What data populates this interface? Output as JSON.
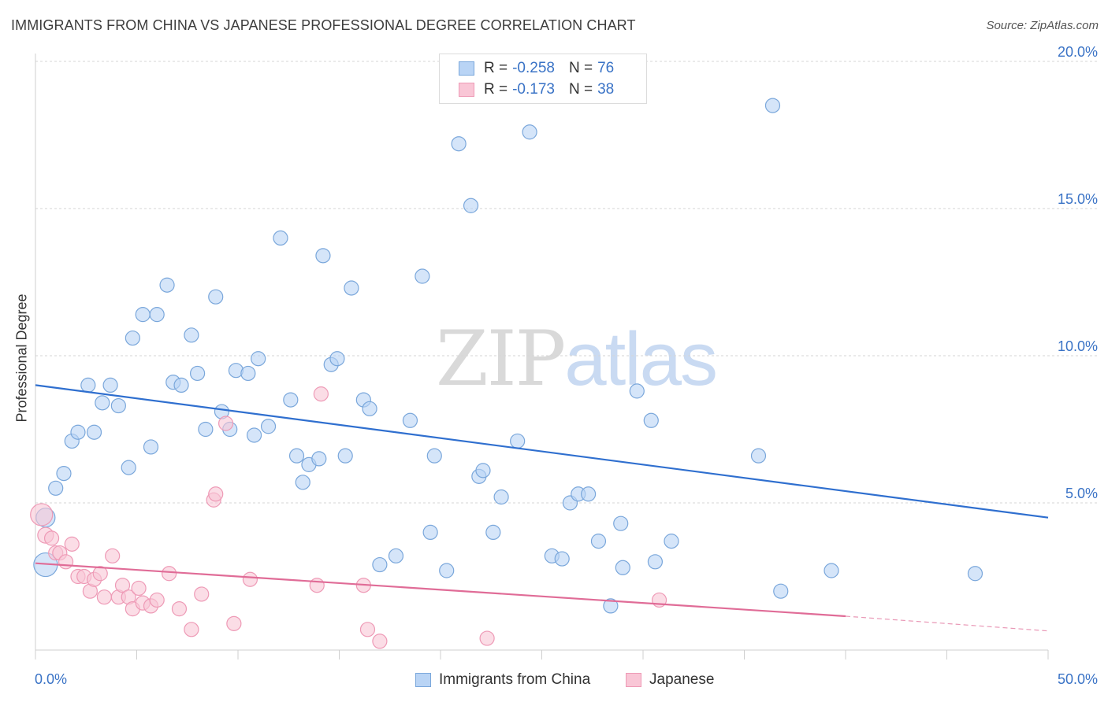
{
  "title": "IMMIGRANTS FROM CHINA VS JAPANESE PROFESSIONAL DEGREE CORRELATION CHART",
  "source": "Source: ZipAtlas.com",
  "watermark": {
    "zip": "ZIP",
    "atlas": "atlas"
  },
  "colors": {
    "china_fill": "#b9d4f5",
    "china_stroke": "#7aa7db",
    "china_line": "#2f6fcf",
    "japanese_fill": "#f9c6d6",
    "japanese_stroke": "#ee9ab6",
    "japanese_line": "#e06c97",
    "grid": "#d5d5d5",
    "axis_label": "#3a73c6"
  },
  "legend": {
    "china": {
      "r_label": "R = ",
      "r_value": "-0.258",
      "n_label": "N = ",
      "n_value": "76"
    },
    "japanese": {
      "r_label": "R = ",
      "r_value": "-0.173",
      "n_label": "N = ",
      "n_value": "38"
    }
  },
  "chart_data": {
    "type": "scatter",
    "title": "IMMIGRANTS FROM CHINA VS JAPANESE PROFESSIONAL DEGREE CORRELATION CHART",
    "xlabel": "",
    "ylabel": "Professional Degree",
    "xlim": [
      0,
      50
    ],
    "ylim": [
      0,
      20
    ],
    "x_tick_labels": [
      "0.0%",
      "50.0%"
    ],
    "y_ticks": [
      5,
      10,
      15,
      20
    ],
    "y_tick_labels": [
      "5.0%",
      "10.0%",
      "15.0%",
      "20.0%"
    ],
    "grid": true,
    "legend_position": "top-center",
    "series": [
      {
        "name": "Immigrants from China",
        "points": [
          [
            0.5,
            4.5,
            12
          ],
          [
            0.5,
            2.9,
            15
          ],
          [
            1.0,
            5.5,
            9
          ],
          [
            1.4,
            6.0,
            9
          ],
          [
            1.8,
            7.1,
            9
          ],
          [
            2.1,
            7.4,
            9
          ],
          [
            2.6,
            9.0,
            9
          ],
          [
            2.9,
            7.4,
            9
          ],
          [
            3.3,
            8.4,
            9
          ],
          [
            3.7,
            9.0,
            9
          ],
          [
            4.1,
            8.3,
            9
          ],
          [
            4.6,
            6.2,
            9
          ],
          [
            4.8,
            10.6,
            9
          ],
          [
            5.3,
            11.4,
            9
          ],
          [
            6.0,
            11.4,
            9
          ],
          [
            5.7,
            6.9,
            9
          ],
          [
            6.5,
            12.4,
            9
          ],
          [
            6.8,
            9.1,
            9
          ],
          [
            7.2,
            9.0,
            9
          ],
          [
            7.7,
            10.7,
            9
          ],
          [
            8.0,
            9.4,
            9
          ],
          [
            8.4,
            7.5,
            9
          ],
          [
            8.9,
            12.0,
            9
          ],
          [
            9.2,
            8.1,
            9
          ],
          [
            9.6,
            7.5,
            9
          ],
          [
            9.9,
            9.5,
            9
          ],
          [
            10.5,
            9.4,
            9
          ],
          [
            10.8,
            7.3,
            9
          ],
          [
            11.0,
            9.9,
            9
          ],
          [
            11.5,
            7.6,
            9
          ],
          [
            12.1,
            14.0,
            9
          ],
          [
            12.6,
            8.5,
            9
          ],
          [
            12.9,
            6.6,
            9
          ],
          [
            13.2,
            5.7,
            9
          ],
          [
            13.5,
            6.3,
            9
          ],
          [
            14.0,
            6.5,
            9
          ],
          [
            14.2,
            13.4,
            9
          ],
          [
            14.6,
            9.7,
            9
          ],
          [
            14.9,
            9.9,
            9
          ],
          [
            15.3,
            6.6,
            9
          ],
          [
            15.6,
            12.3,
            9
          ],
          [
            16.2,
            8.5,
            9
          ],
          [
            16.5,
            8.2,
            9
          ],
          [
            17.0,
            2.9,
            9
          ],
          [
            17.8,
            3.2,
            9
          ],
          [
            18.5,
            7.8,
            9
          ],
          [
            19.1,
            12.7,
            9
          ],
          [
            19.5,
            4.0,
            9
          ],
          [
            19.7,
            6.6,
            9
          ],
          [
            20.3,
            2.7,
            9
          ],
          [
            20.9,
            17.2,
            9
          ],
          [
            21.5,
            15.1,
            9
          ],
          [
            21.9,
            5.9,
            9
          ],
          [
            22.1,
            6.1,
            9
          ],
          [
            22.6,
            4.0,
            9
          ],
          [
            23.0,
            5.2,
            9
          ],
          [
            23.8,
            7.1,
            9
          ],
          [
            24.4,
            17.6,
            9
          ],
          [
            25.5,
            3.2,
            9
          ],
          [
            26.0,
            3.1,
            9
          ],
          [
            26.4,
            5.0,
            9
          ],
          [
            26.8,
            5.3,
            9
          ],
          [
            27.3,
            5.3,
            9
          ],
          [
            27.8,
            3.7,
            9
          ],
          [
            28.4,
            1.5,
            9
          ],
          [
            28.9,
            4.3,
            9
          ],
          [
            29.0,
            2.8,
            9
          ],
          [
            29.7,
            8.8,
            9
          ],
          [
            30.4,
            7.8,
            9
          ],
          [
            30.6,
            3.0,
            9
          ],
          [
            31.4,
            3.7,
            9
          ],
          [
            35.7,
            6.6,
            9
          ],
          [
            36.4,
            18.5,
            9
          ],
          [
            36.8,
            2.0,
            9
          ],
          [
            39.3,
            2.7,
            9
          ],
          [
            46.4,
            2.6,
            9
          ]
        ]
      },
      {
        "name": "Japanese",
        "points": [
          [
            0.3,
            4.6,
            14
          ],
          [
            0.5,
            3.9,
            10
          ],
          [
            0.8,
            3.8,
            9
          ],
          [
            1.0,
            3.3,
            9
          ],
          [
            1.2,
            3.3,
            9
          ],
          [
            1.5,
            3.0,
            9
          ],
          [
            1.8,
            3.6,
            9
          ],
          [
            2.1,
            2.5,
            9
          ],
          [
            2.4,
            2.5,
            9
          ],
          [
            2.7,
            2.0,
            9
          ],
          [
            2.9,
            2.4,
            9
          ],
          [
            3.2,
            2.6,
            9
          ],
          [
            3.4,
            1.8,
            9
          ],
          [
            3.8,
            3.2,
            9
          ],
          [
            4.1,
            1.8,
            9
          ],
          [
            4.3,
            2.2,
            9
          ],
          [
            4.6,
            1.8,
            9
          ],
          [
            4.8,
            1.4,
            9
          ],
          [
            5.1,
            2.1,
            9
          ],
          [
            5.3,
            1.6,
            9
          ],
          [
            5.7,
            1.5,
            9
          ],
          [
            6.0,
            1.7,
            9
          ],
          [
            6.6,
            2.6,
            9
          ],
          [
            7.1,
            1.4,
            9
          ],
          [
            7.7,
            0.7,
            9
          ],
          [
            8.2,
            1.9,
            9
          ],
          [
            8.8,
            5.1,
            9
          ],
          [
            8.9,
            5.3,
            9
          ],
          [
            9.4,
            7.7,
            9
          ],
          [
            9.8,
            0.9,
            9
          ],
          [
            10.6,
            2.4,
            9
          ],
          [
            13.9,
            2.2,
            9
          ],
          [
            14.1,
            8.7,
            9
          ],
          [
            16.2,
            2.2,
            9
          ],
          [
            16.4,
            0.7,
            9
          ],
          [
            17.0,
            0.3,
            9
          ],
          [
            22.3,
            0.4,
            9
          ],
          [
            30.8,
            1.7,
            9
          ]
        ]
      }
    ],
    "trendlines": [
      {
        "series": "Immigrants from China",
        "x": [
          0,
          50
        ],
        "y": [
          9.0,
          4.5
        ]
      },
      {
        "series": "Japanese",
        "x": [
          0,
          40
        ],
        "y": [
          2.95,
          1.15
        ],
        "dashed_extension_to": [
          50,
          0.65
        ]
      }
    ]
  },
  "bottom_legend": [
    "Immigrants from China",
    "Japanese"
  ]
}
